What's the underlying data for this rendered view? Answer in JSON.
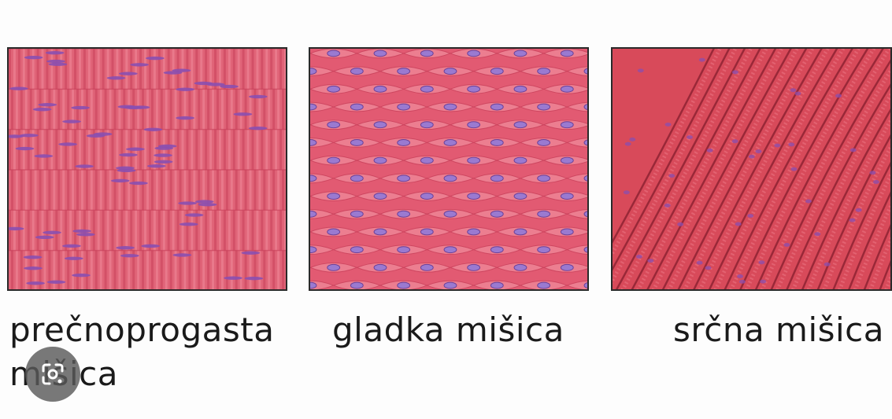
{
  "panels": [
    {
      "id": "skeletal",
      "caption_lines": [
        "prečnoprogasta",
        "mišica"
      ]
    },
    {
      "id": "smooth",
      "caption": "gladka mišica"
    },
    {
      "id": "cardiac",
      "caption": "srčna mišica"
    }
  ],
  "overlay": {
    "icon": "google-lens-icon"
  },
  "colors": {
    "tissue_base": "#e06478",
    "tissue_dark": "#c8405a",
    "tissue_light": "#f08a9a",
    "nucleus": "#8a4fb0",
    "cardiac_base": "#d84a5a",
    "cardiac_line": "#8a1f30"
  }
}
